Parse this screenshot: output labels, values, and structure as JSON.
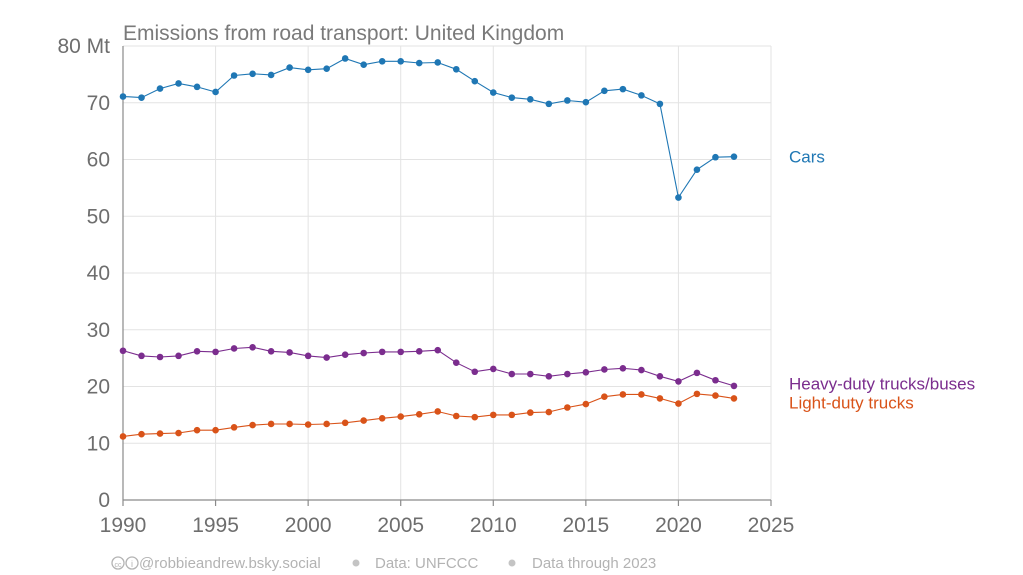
{
  "chart_data": {
    "type": "line",
    "title": "Emissions from road transport: United Kingdom",
    "ylabel": "",
    "xlabel": "",
    "y_unit": "Mt",
    "xlim": [
      1990,
      2025
    ],
    "ylim": [
      0,
      80
    ],
    "x_ticks": [
      1990,
      1995,
      2000,
      2005,
      2010,
      2015,
      2020,
      2025
    ],
    "y_ticks": [
      0,
      10,
      20,
      30,
      40,
      50,
      60,
      70,
      80
    ],
    "y_tick_labels": [
      "0",
      "10",
      "20",
      "30",
      "40",
      "50",
      "60",
      "70",
      "80 Mt"
    ],
    "grid": true,
    "x": [
      1990,
      1991,
      1992,
      1993,
      1994,
      1995,
      1996,
      1997,
      1998,
      1999,
      2000,
      2001,
      2002,
      2003,
      2004,
      2005,
      2006,
      2007,
      2008,
      2009,
      2010,
      2011,
      2012,
      2013,
      2014,
      2015,
      2016,
      2017,
      2018,
      2019,
      2020,
      2021,
      2022,
      2023
    ],
    "series": [
      {
        "name": "Cars",
        "color": "#1f77b4",
        "values": [
          71.1,
          70.9,
          72.5,
          73.4,
          72.8,
          71.9,
          74.8,
          75.1,
          74.9,
          76.2,
          75.8,
          76.0,
          77.8,
          76.7,
          77.3,
          77.3,
          77.0,
          77.1,
          75.9,
          73.8,
          71.8,
          70.9,
          70.6,
          69.8,
          70.4,
          70.1,
          72.1,
          72.4,
          71.3,
          69.8,
          53.3,
          58.2,
          60.4,
          60.5
        ]
      },
      {
        "name": "Heavy-duty trucks/buses",
        "color": "#7b2d8e",
        "values": [
          26.3,
          25.4,
          25.2,
          25.4,
          26.2,
          26.1,
          26.7,
          26.9,
          26.2,
          26.0,
          25.4,
          25.1,
          25.6,
          25.9,
          26.1,
          26.1,
          26.2,
          26.4,
          24.2,
          22.6,
          23.1,
          22.2,
          22.2,
          21.8,
          22.2,
          22.5,
          23.0,
          23.2,
          22.9,
          21.8,
          20.9,
          22.4,
          21.1,
          20.1
        ]
      },
      {
        "name": "Light-duty trucks",
        "color": "#d95319",
        "values": [
          11.2,
          11.6,
          11.7,
          11.8,
          12.3,
          12.3,
          12.8,
          13.2,
          13.4,
          13.4,
          13.3,
          13.4,
          13.6,
          14.0,
          14.4,
          14.7,
          15.1,
          15.6,
          14.8,
          14.6,
          15.0,
          15.0,
          15.4,
          15.5,
          16.3,
          16.9,
          18.2,
          18.6,
          18.6,
          17.9,
          17.0,
          18.7,
          18.4,
          17.9
        ]
      }
    ]
  },
  "footer": {
    "credit": "@robbieandrew.bsky.social",
    "source": "Data: UNFCCC",
    "through": "Data through 2023"
  }
}
